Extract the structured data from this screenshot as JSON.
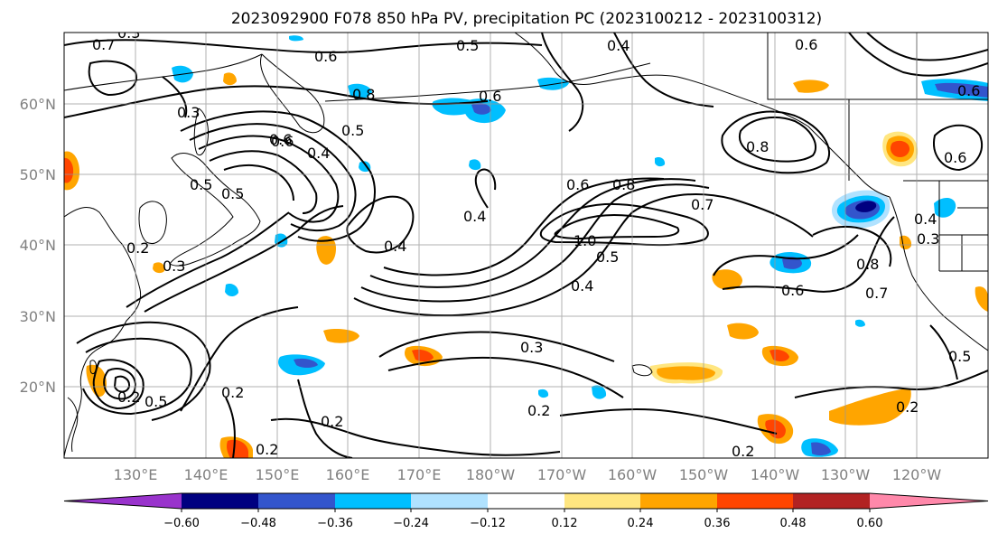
{
  "title": "2023092900 F078 850 hPa PV, precipitation PC (2023100212 - 2023100312)",
  "map": {
    "lat_labels": [
      "60°N",
      "50°N",
      "40°N",
      "30°N",
      "20°N"
    ],
    "lon_labels": [
      "130°E",
      "140°E",
      "150°E",
      "160°E",
      "170°E",
      "180°W",
      "170°W",
      "160°W",
      "150°W",
      "140°W",
      "130°W",
      "120°W"
    ],
    "contour_labels": [
      "0.7",
      "0.6",
      "0.5",
      "0.4",
      "0.6",
      "0.3",
      "0.8",
      "0.6",
      "0.5",
      "0.4",
      "0.5",
      "0.6",
      "0.5",
      "0.4",
      "0.3",
      "0.2",
      "0.3",
      "0.2",
      "0.4",
      "0.6",
      "0.8",
      "0.7",
      "1.0",
      "0.5",
      "0.4",
      "0.8",
      "0.6",
      "0.6",
      "0.3",
      "0.2",
      "0.2",
      "0.2",
      "0.2",
      "0.2",
      "0.8",
      "0.7",
      "0.3",
      "0.4",
      "0.6",
      "0.6",
      "0.5",
      "0.2",
      "0.5"
    ]
  },
  "colorbar": {
    "colors": [
      "#9933cc",
      "#000080",
      "#3355cc",
      "#00bfff",
      "#b0e2ff",
      "#ffffff",
      "#ffe680",
      "#ffa500",
      "#ff4500",
      "#b22222",
      "#ff88aa"
    ],
    "tick_labels": [
      "−0.60",
      "−0.48",
      "−0.36",
      "−0.24",
      "−0.12",
      "0.12",
      "0.24",
      "0.36",
      "0.48",
      "0.60"
    ]
  },
  "colors": {
    "grid": "#999999",
    "contour": "#000000",
    "coast": "#000000",
    "axis_label": "#808080"
  }
}
